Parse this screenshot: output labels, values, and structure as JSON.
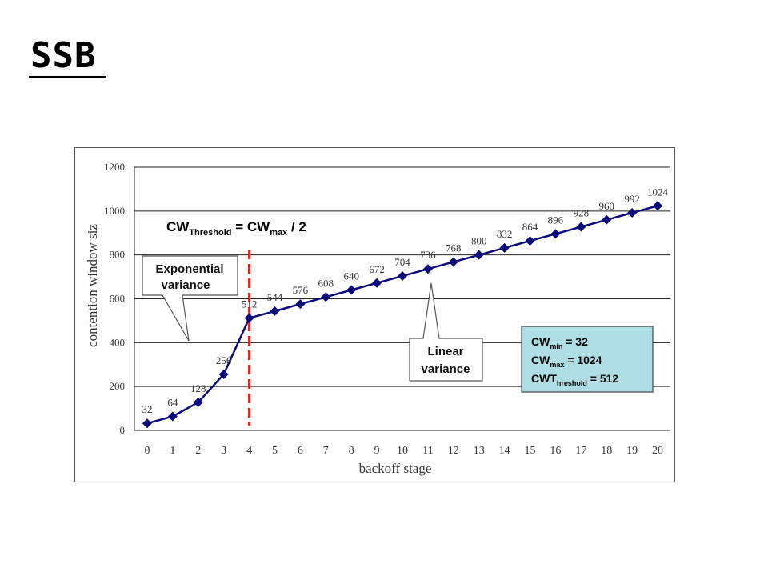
{
  "slide": {
    "title": "SSB"
  },
  "chart_data": {
    "type": "line",
    "title": "",
    "xlabel": "backoff stage",
    "ylabel": "contention window siz",
    "categories": [
      "0",
      "1",
      "2",
      "3",
      "4",
      "5",
      "6",
      "7",
      "8",
      "9",
      "10",
      "11",
      "12",
      "13",
      "14",
      "15",
      "16",
      "17",
      "18",
      "19",
      "20"
    ],
    "values": [
      32,
      64,
      128,
      256,
      512,
      544,
      576,
      608,
      640,
      672,
      704,
      736,
      768,
      800,
      832,
      864,
      896,
      928,
      960,
      992,
      1024
    ],
    "data_labels": [
      "32",
      "64",
      "128",
      "256",
      "512",
      "544",
      "576",
      "608",
      "640",
      "672",
      "704",
      "736",
      "768",
      "800",
      "832",
      "864",
      "896",
      "928",
      "960",
      "992",
      "1024"
    ],
    "ylim": [
      0,
      1200
    ],
    "yticks": [
      0,
      200,
      400,
      600,
      800,
      1000,
      1200
    ],
    "grid": true,
    "series_color": "#0a0a7a",
    "threshold_line": {
      "x": 4,
      "color": "#e02020"
    },
    "annotations": {
      "formula": {
        "cw": "CW",
        "sub1": "Threshold",
        "eq": " = CW",
        "sub2": "max",
        "tail": " / 2"
      },
      "exponential": {
        "line1": "Exponential",
        "line2": "variance"
      },
      "linear": {
        "line1": "Linear",
        "line2": "variance"
      },
      "params": {
        "bg": "#aedde6",
        "row1": {
          "main": "CW",
          "sub": "min",
          "val": " = 32"
        },
        "row2": {
          "main": "CW",
          "sub": "max",
          "val": " = 1024"
        },
        "row3": {
          "main": "CWT",
          "sub": "hreshold",
          "val": " = 512"
        }
      }
    }
  }
}
